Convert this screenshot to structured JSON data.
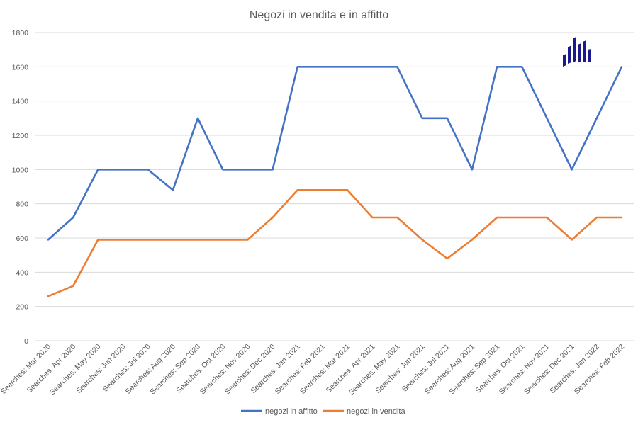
{
  "chart_data": {
    "type": "line",
    "title": "Negozi in vendita e in affitto",
    "xlabel": "",
    "ylabel": "",
    "ylim": [
      0,
      1800
    ],
    "yticks": [
      0,
      200,
      400,
      600,
      800,
      1000,
      1200,
      1400,
      1600,
      1800
    ],
    "grid": true,
    "legend_position": "bottom",
    "categories": [
      "Searches: Mar 2020",
      "Searches: Apr 2020",
      "Searches: May 2020",
      "Searches: Jun 2020",
      "Searches: Jul 2020",
      "Searches: Aug 2020",
      "Searches: Sep 2020",
      "Searches: Oct 2020",
      "Searches: Nov 2020",
      "Searches: Dec 2020",
      "Searches: Jan 2021",
      "Searches: Feb 2021",
      "Searches: Mar 2021",
      "Searches: Apr 2021",
      "Searches: May 2021",
      "Searches: Jun 2021",
      "Searches: Jul 2021",
      "Searches: Aug 2021",
      "Searches: Sep 2021",
      "Searches: Oct 2021",
      "Searches: Nov 2021",
      "Searches: Dec 2021",
      "Searches: Jan 2022",
      "Searches: Feb 2022"
    ],
    "series": [
      {
        "name": "negozi in affitto",
        "color": "#4472C4",
        "values": [
          590,
          720,
          1000,
          1000,
          1000,
          880,
          1300,
          1000,
          1000,
          1000,
          1600,
          1600,
          1600,
          1600,
          1600,
          1300,
          1300,
          1000,
          1600,
          1600,
          1300,
          1000,
          1300,
          1600
        ]
      },
      {
        "name": "negozi in vendita",
        "color": "#ED7D31",
        "values": [
          260,
          320,
          590,
          590,
          590,
          590,
          590,
          590,
          590,
          720,
          880,
          880,
          880,
          720,
          720,
          590,
          480,
          590,
          720,
          720,
          720,
          590,
          720,
          720
        ]
      }
    ]
  },
  "logo": {
    "icon": "building-bars-logo-icon",
    "color": "#1a1a8c"
  }
}
